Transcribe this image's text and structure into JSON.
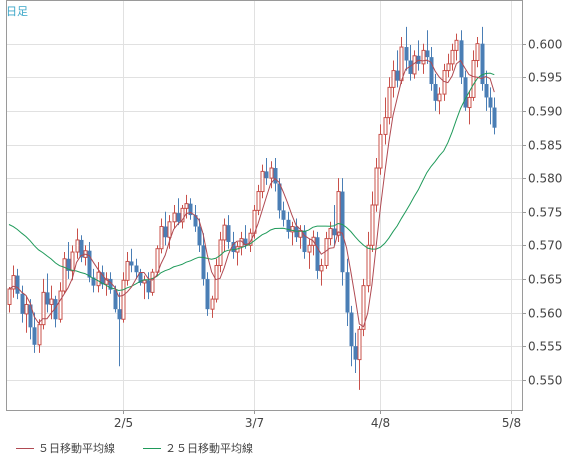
{
  "period_label": "日足",
  "colors": {
    "bull": "#c8504a",
    "bear": "#4a7eb5",
    "ma5": "#b04a52",
    "ma25": "#1f9a5a",
    "grid": "#e1e1e1",
    "axis": "#9a9a9a",
    "label_text": "#444444",
    "period_text": "#3aa6c8"
  },
  "legend": [
    {
      "label": "５日移動平均線",
      "series": "ma5"
    },
    {
      "label": "２５日移動平均線",
      "series": "ma25"
    }
  ],
  "chart_data": {
    "type": "candlestick",
    "ylim": [
      0.5455,
      0.6065
    ],
    "y_ticks": [
      0.55,
      0.555,
      0.56,
      0.565,
      0.57,
      0.575,
      0.58,
      0.585,
      0.59,
      0.595,
      0.6
    ],
    "y_tick_labels": [
      "0.550",
      "0.555",
      "0.560",
      "0.565",
      "0.570",
      "0.575",
      "0.580",
      "0.585",
      "0.590",
      "0.595",
      "0.600"
    ],
    "x_labels": [
      {
        "index": 27,
        "label": "2/5"
      },
      {
        "index": 58,
        "label": "3/7"
      },
      {
        "index": 88,
        "label": "4/8"
      },
      {
        "index": 119,
        "label": "5/8"
      }
    ],
    "candles": [
      [
        0.5612,
        0.5638,
        0.56,
        0.5635
      ],
      [
        0.5635,
        0.567,
        0.5622,
        0.5655
      ],
      [
        0.5655,
        0.5665,
        0.562,
        0.5628
      ],
      [
        0.5628,
        0.564,
        0.5585,
        0.5598
      ],
      [
        0.5598,
        0.5625,
        0.557,
        0.5612
      ],
      [
        0.5612,
        0.562,
        0.556,
        0.5578
      ],
      [
        0.5578,
        0.56,
        0.554,
        0.5552
      ],
      [
        0.5552,
        0.559,
        0.554,
        0.5582
      ],
      [
        0.5582,
        0.565,
        0.5575,
        0.563
      ],
      [
        0.563,
        0.5658,
        0.56,
        0.5612
      ],
      [
        0.5612,
        0.564,
        0.559,
        0.562
      ],
      [
        0.562,
        0.5625,
        0.5578,
        0.559
      ],
      [
        0.559,
        0.5645,
        0.5585,
        0.5632
      ],
      [
        0.5632,
        0.569,
        0.5628,
        0.568
      ],
      [
        0.568,
        0.5705,
        0.565,
        0.5662
      ],
      [
        0.5662,
        0.57,
        0.5648,
        0.569
      ],
      [
        0.569,
        0.5725,
        0.568,
        0.5708
      ],
      [
        0.5708,
        0.5715,
        0.5675,
        0.5682
      ],
      [
        0.5682,
        0.57,
        0.567,
        0.5692
      ],
      [
        0.5692,
        0.5705,
        0.5645,
        0.5652
      ],
      [
        0.5652,
        0.5665,
        0.563,
        0.564
      ],
      [
        0.564,
        0.5675,
        0.563,
        0.566
      ],
      [
        0.566,
        0.567,
        0.5635,
        0.5642
      ],
      [
        0.5642,
        0.566,
        0.5625,
        0.565
      ],
      [
        0.565,
        0.566,
        0.5628,
        0.5634
      ],
      [
        0.5634,
        0.564,
        0.56,
        0.5605
      ],
      [
        0.5605,
        0.563,
        0.552,
        0.559
      ],
      [
        0.559,
        0.566,
        0.5585,
        0.5648
      ],
      [
        0.5648,
        0.569,
        0.564,
        0.5676
      ],
      [
        0.5676,
        0.5695,
        0.566,
        0.567
      ],
      [
        0.567,
        0.568,
        0.565,
        0.566
      ],
      [
        0.566,
        0.5665,
        0.564,
        0.5644
      ],
      [
        0.5644,
        0.5655,
        0.562,
        0.5648
      ],
      [
        0.5648,
        0.566,
        0.562,
        0.563
      ],
      [
        0.563,
        0.5665,
        0.5625,
        0.566
      ],
      [
        0.566,
        0.57,
        0.5655,
        0.5695
      ],
      [
        0.5695,
        0.574,
        0.5688,
        0.5728
      ],
      [
        0.5728,
        0.575,
        0.57,
        0.5712
      ],
      [
        0.5712,
        0.5745,
        0.5695,
        0.5735
      ],
      [
        0.5735,
        0.576,
        0.5725,
        0.5748
      ],
      [
        0.5748,
        0.577,
        0.573,
        0.5735
      ],
      [
        0.5735,
        0.576,
        0.5725,
        0.5755
      ],
      [
        0.5755,
        0.5775,
        0.574,
        0.5762
      ],
      [
        0.5762,
        0.577,
        0.5738,
        0.5745
      ],
      [
        0.5745,
        0.576,
        0.572,
        0.5728
      ],
      [
        0.5728,
        0.574,
        0.569,
        0.57
      ],
      [
        0.57,
        0.5718,
        0.564,
        0.565
      ],
      [
        0.565,
        0.566,
        0.5595,
        0.5605
      ],
      [
        0.5605,
        0.5625,
        0.5592,
        0.562
      ],
      [
        0.562,
        0.568,
        0.5615,
        0.567
      ],
      [
        0.567,
        0.572,
        0.566,
        0.5708
      ],
      [
        0.5708,
        0.574,
        0.569,
        0.573
      ],
      [
        0.573,
        0.5745,
        0.5695,
        0.5705
      ],
      [
        0.5705,
        0.572,
        0.568,
        0.569
      ],
      [
        0.569,
        0.5705,
        0.567,
        0.5698
      ],
      [
        0.5698,
        0.572,
        0.5685,
        0.571
      ],
      [
        0.571,
        0.573,
        0.5695,
        0.57
      ],
      [
        0.57,
        0.5725,
        0.569,
        0.5718
      ],
      [
        0.5718,
        0.576,
        0.571,
        0.5752
      ],
      [
        0.5752,
        0.579,
        0.5745,
        0.578
      ],
      [
        0.578,
        0.582,
        0.577,
        0.581
      ],
      [
        0.581,
        0.583,
        0.579,
        0.58
      ],
      [
        0.58,
        0.5825,
        0.5785,
        0.5815
      ],
      [
        0.5815,
        0.583,
        0.578,
        0.5792
      ],
      [
        0.5792,
        0.58,
        0.574,
        0.5752
      ],
      [
        0.5752,
        0.5765,
        0.5728,
        0.5738
      ],
      [
        0.5738,
        0.575,
        0.571,
        0.572
      ],
      [
        0.572,
        0.5735,
        0.57,
        0.5728
      ],
      [
        0.5728,
        0.574,
        0.5705,
        0.5712
      ],
      [
        0.5712,
        0.573,
        0.5695,
        0.5722
      ],
      [
        0.5722,
        0.573,
        0.568,
        0.569
      ],
      [
        0.569,
        0.571,
        0.5665,
        0.57
      ],
      [
        0.57,
        0.5722,
        0.5685,
        0.5712
      ],
      [
        0.5712,
        0.572,
        0.565,
        0.5662
      ],
      [
        0.5662,
        0.568,
        0.564,
        0.567
      ],
      [
        0.567,
        0.572,
        0.5665,
        0.571
      ],
      [
        0.571,
        0.5735,
        0.57,
        0.5725
      ],
      [
        0.5725,
        0.576,
        0.57,
        0.5715
      ],
      [
        0.5715,
        0.58,
        0.5705,
        0.578
      ],
      [
        0.578,
        0.58,
        0.564,
        0.566
      ],
      [
        0.566,
        0.568,
        0.558,
        0.56
      ],
      [
        0.56,
        0.561,
        0.552,
        0.555
      ],
      [
        0.555,
        0.557,
        0.551,
        0.553
      ],
      [
        0.553,
        0.558,
        0.5485,
        0.5575
      ],
      [
        0.5575,
        0.565,
        0.5565,
        0.564
      ],
      [
        0.564,
        0.572,
        0.563,
        0.57
      ],
      [
        0.57,
        0.578,
        0.569,
        0.576
      ],
      [
        0.576,
        0.583,
        0.575,
        0.5815
      ],
      [
        0.5815,
        0.588,
        0.5805,
        0.5865
      ],
      [
        0.5865,
        0.592,
        0.585,
        0.589
      ],
      [
        0.589,
        0.595,
        0.588,
        0.5935
      ],
      [
        0.5935,
        0.5975,
        0.592,
        0.596
      ],
      [
        0.596,
        0.599,
        0.5935,
        0.5945
      ],
      [
        0.5945,
        0.601,
        0.594,
        0.5995
      ],
      [
        0.5995,
        0.6025,
        0.596,
        0.5975
      ],
      [
        0.5975,
        0.5998,
        0.5945,
        0.5955
      ],
      [
        0.5955,
        0.599,
        0.5948,
        0.5982
      ],
      [
        0.5982,
        0.6005,
        0.596,
        0.597
      ],
      [
        0.597,
        0.6,
        0.5955,
        0.599
      ],
      [
        0.599,
        0.602,
        0.597,
        0.598
      ],
      [
        0.598,
        0.5995,
        0.593,
        0.594
      ],
      [
        0.594,
        0.5955,
        0.59,
        0.5915
      ],
      [
        0.5915,
        0.5935,
        0.5895,
        0.5925
      ],
      [
        0.5925,
        0.597,
        0.5915,
        0.596
      ],
      [
        0.596,
        0.5985,
        0.595,
        0.597
      ],
      [
        0.597,
        0.6,
        0.596,
        0.599
      ],
      [
        0.599,
        0.6015,
        0.5975,
        0.6005
      ],
      [
        0.6005,
        0.602,
        0.594,
        0.595
      ],
      [
        0.595,
        0.596,
        0.59,
        0.5905
      ],
      [
        0.5905,
        0.593,
        0.588,
        0.592
      ],
      [
        0.592,
        0.599,
        0.5915,
        0.5975
      ],
      [
        0.5975,
        0.601,
        0.5965,
        0.6
      ],
      [
        0.6,
        0.6025,
        0.593,
        0.594
      ],
      [
        0.594,
        0.596,
        0.59,
        0.592
      ],
      [
        0.592,
        0.5935,
        0.588,
        0.5905
      ],
      [
        0.5905,
        0.592,
        0.5865,
        0.5875
      ]
    ]
  }
}
